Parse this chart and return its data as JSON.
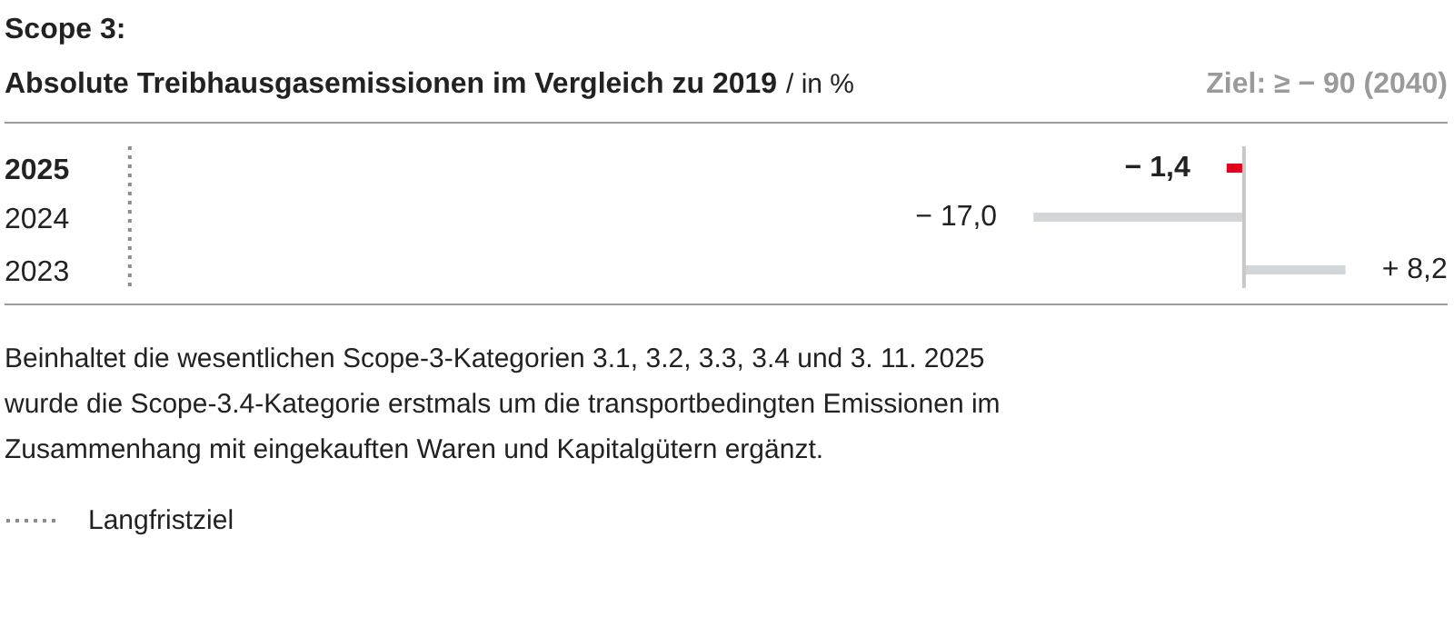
{
  "chart_data": {
    "type": "bar",
    "orientation": "horizontal",
    "title": "Scope 3:",
    "subtitle": "Absolute Treibhausgasemissionen im Vergleich zu 2019",
    "xlabel": "/ in %",
    "categories": [
      "2025",
      "2024",
      "2023"
    ],
    "values": [
      -1.4,
      -17.0,
      8.2
    ],
    "colors": [
      "#e2001a",
      "#d3d6d9",
      "#d3d6d9"
    ],
    "value_labels": [
      "− 1,4",
      "− 17,0",
      "+ 8,2"
    ],
    "data_labels": true,
    "ref_lines": [
      {
        "axis": "x",
        "value": -90,
        "label": "Langfristziel",
        "color": "#8c8c8c",
        "line_style": "dotted"
      }
    ],
    "annotations": [
      "Ziel: ≥ − 90 (2040)",
      "Beinhaltet die wesentlichen Scope-3-Kategorien 3.1, 3.2, 3.3, 3.4 und 3. 11. 2025\nwurde die Scope-3.4-Kategorie erstmals um die transportbedingten Emissionen im\nZusammenhang mit eingekauften Waren und Kapitalgütern ergänzt."
    ],
    "grid": false,
    "legend": "bottom left"
  }
}
